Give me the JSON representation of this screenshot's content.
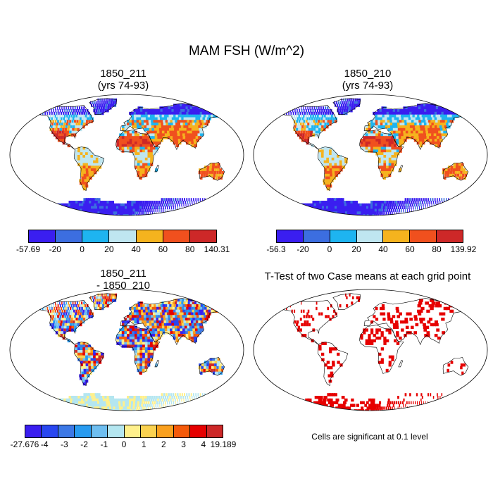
{
  "title": "MAM FSH (W/m^2)",
  "panels": {
    "p1": {
      "title_line1": "1850_211",
      "title_line2": "(yrs 74-93)"
    },
    "p2": {
      "title_line1": "1850_210",
      "title_line2": "(yrs 74-93)"
    },
    "p3": {
      "title_line1": "1850_211",
      "title_line2": "- 1850_210"
    },
    "p4": {
      "title_line1": "T-Test of two Case means at each grid point"
    }
  },
  "colorbars": {
    "cb1": {
      "colors": [
        "#3a1ef0",
        "#3c6ee0",
        "#1eb4f0",
        "#bfe6f0",
        "#f5b31e",
        "#f0501e",
        "#cd2828"
      ],
      "labels": [
        "-57.69",
        "-20",
        "0",
        "20",
        "40",
        "60",
        "80",
        "140.31"
      ]
    },
    "cb2": {
      "colors": [
        "#3a1ef0",
        "#3c6ee0",
        "#1eb4f0",
        "#bfe6f0",
        "#f5b31e",
        "#f0501e",
        "#cd2828"
      ],
      "labels": [
        "-56.3",
        "-20",
        "0",
        "20",
        "40",
        "60",
        "80",
        "139.92"
      ]
    },
    "cb3": {
      "colors": [
        "#3a1ef0",
        "#2846f0",
        "#3c78e6",
        "#289bf0",
        "#6ebef0",
        "#b4e6f0",
        "#fff08c",
        "#fad250",
        "#faa01e",
        "#f55a0a",
        "#e60000",
        "#cd2828"
      ],
      "labels": [
        "-27.676",
        "-4",
        "-3",
        "-2",
        "-1",
        "0",
        "1",
        "2",
        "3",
        "4",
        "19.189"
      ]
    }
  },
  "significance_note": "Cells are significant at 0.1 level",
  "map_colors": {
    "ocean": "#ffffff",
    "outline": "#000000",
    "signif": "#e60000"
  }
}
